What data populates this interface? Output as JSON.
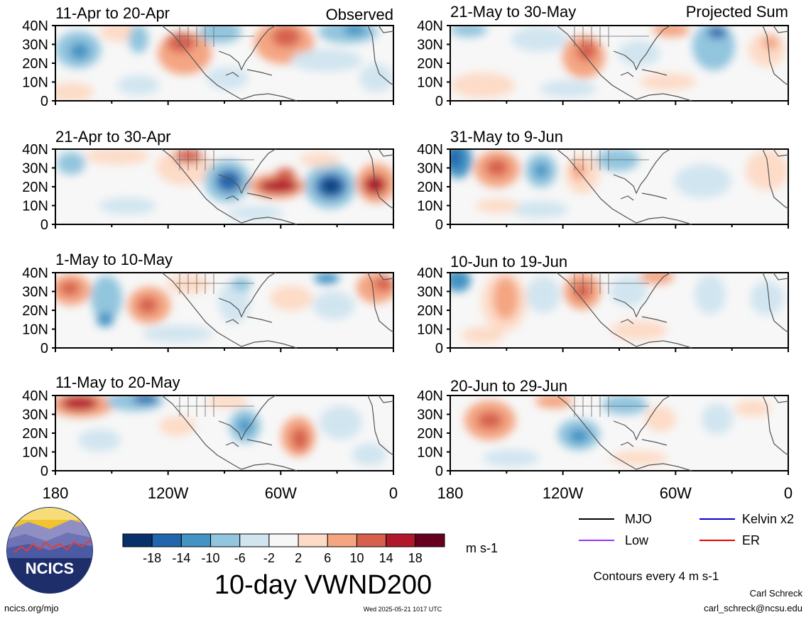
{
  "figure": {
    "title": "10-day VWND200",
    "label_observed": "Observed",
    "label_projected": "Projected Sum",
    "units": "m s-1",
    "contour_note": "Contours every 4 m s-1",
    "author": "Carl Schreck",
    "email": "carl_schreck@ncsu.edu",
    "site": "ncics.org/mjo",
    "timestamp": "Wed 2025-05-21 1017 UTC",
    "logo_text": "NCICS"
  },
  "axes": {
    "lat_labels": [
      "40N",
      "30N",
      "20N",
      "10N",
      "0"
    ],
    "lon_labels": [
      "180",
      "120W",
      "60W",
      "0"
    ]
  },
  "panels_left": [
    {
      "period": "11-Apr to 20-Apr"
    },
    {
      "period": "21-Apr to 30-Apr"
    },
    {
      "period": "1-May to 10-May"
    },
    {
      "period": "11-May to 20-May"
    }
  ],
  "panels_right": [
    {
      "period": "21-May to 30-May"
    },
    {
      "period": "31-May to 9-Jun"
    },
    {
      "period": "10-Jun to 19-Jun"
    },
    {
      "period": "20-Jun to 29-Jun"
    }
  ],
  "colorbar": {
    "tick_labels": [
      "-18",
      "-14",
      "-10",
      "-6",
      "-2",
      "2",
      "6",
      "10",
      "14",
      "18"
    ],
    "colors": [
      "#08306b",
      "#2166ac",
      "#4393c3",
      "#92c5de",
      "#d1e5f0",
      "#f7f7f7",
      "#fddbc7",
      "#f4a582",
      "#d6604d",
      "#b2182b",
      "#67001f"
    ]
  },
  "legend": {
    "items": [
      {
        "label": "MJO",
        "color": "#000000"
      },
      {
        "label": "Kelvin x2",
        "color": "#0000cc"
      },
      {
        "label": "Low",
        "color": "#9933ff"
      },
      {
        "label": "ER",
        "color": "#e60000"
      }
    ]
  }
}
